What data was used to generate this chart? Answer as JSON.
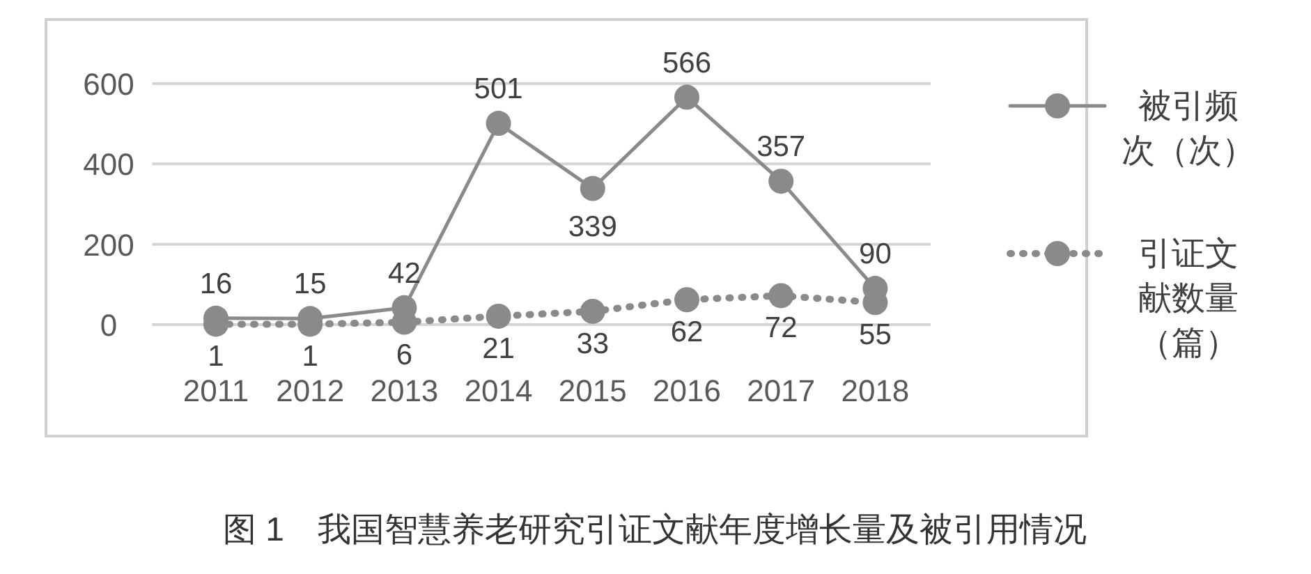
{
  "chart_data": {
    "type": "line",
    "categories": [
      "2011",
      "2012",
      "2013",
      "2014",
      "2015",
      "2016",
      "2017",
      "2018"
    ],
    "series": [
      {
        "name": "被引频次（次）",
        "color": "#8a8a8a",
        "line_style": "solid",
        "values": [
          16,
          15,
          42,
          501,
          339,
          566,
          357,
          90
        ]
      },
      {
        "name": "引证文献数量（篇）",
        "color": "#8a8a8a",
        "line_style": "dotted",
        "values": [
          1,
          1,
          6,
          21,
          33,
          62,
          72,
          55
        ]
      }
    ],
    "ylim": [
      0,
      600
    ],
    "yticks": [
      0,
      200,
      400,
      600
    ],
    "grid": "y",
    "legend": "right",
    "marker": "circle",
    "data_labels": true,
    "annotations": [
      "图 1　我国智慧养老研究引证文献年度增长量及被引用情况"
    ]
  }
}
